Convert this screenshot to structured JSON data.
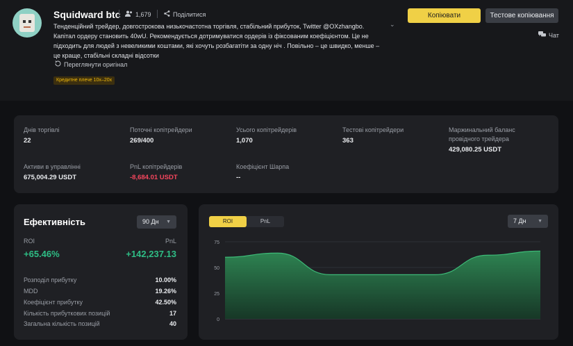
{
  "profile": {
    "name": "Squidward btc",
    "followers": "1,679",
    "share_label": "Поділитися",
    "description": "Тенденційний трейдер, довгострокова низькочастотна торгівля, стабільний прибуток, Twitter @OXzhangbo. Капітал ордеру становить 40wU. Рекомендується дотримуватися ордерів із фіксованим коефіцієнтом. Це не підходить для людей з невеликими коштами, які хочуть розбагатіти за одну ніч . Повільно – це швидко, менше – це краще, стабільні складні відсотки",
    "view_original": "Переглянути оригінал",
    "leverage_tag": "Кредитне плече 10x–20x"
  },
  "actions": {
    "copy": "Копіювати",
    "test_copy": "Тестове копіювання",
    "chat": "Чат"
  },
  "stats": [
    {
      "label": "Днів торгівлі",
      "value": "22"
    },
    {
      "label": "Поточні копітрейдери",
      "value": "269/400"
    },
    {
      "label": "Усього копітрейдерів",
      "value": "1,070"
    },
    {
      "label": "Тестові копітрейдери",
      "value": "363"
    },
    {
      "label": "Маржинальний баланс провідного трейдера",
      "value": "429,080.25 USDT"
    },
    {
      "label": "Активи в управлінні",
      "value": "675,004.29 USDT"
    },
    {
      "label": "PnL копітрейдерів",
      "value": "-8,684.01 USDT"
    },
    {
      "label": "Коефіцієнт Шарпа",
      "value": "--"
    }
  ],
  "performance": {
    "title": "Ефективність",
    "period": "90 Дн",
    "roi_label": "ROI",
    "roi_value": "+65.46%",
    "pnl_label": "PnL",
    "pnl_value": "+142,237.13",
    "rows": [
      {
        "label": "Розподіл прибутку",
        "value": "10.00%"
      },
      {
        "label": "MDD",
        "value": "19.26%"
      },
      {
        "label": "Коефіцієнт прибутку",
        "value": "42.50%"
      },
      {
        "label": "Кількість прибуткових позицій",
        "value": "17"
      },
      {
        "label": "Загальна кількість позицій",
        "value": "40"
      }
    ]
  },
  "chart_panel": {
    "tabs": [
      "ROI",
      "PnL"
    ],
    "active_tab": "ROI",
    "period": "7 Дн"
  },
  "colors": {
    "accent": "#f0d046",
    "positive": "#2ebd85",
    "negative": "#f6465d"
  },
  "chart_data": {
    "type": "area",
    "title": "",
    "xlabel": "",
    "ylabel": "",
    "x": [
      0,
      1,
      2,
      3,
      4,
      5,
      6
    ],
    "values": [
      60,
      64,
      43,
      43,
      43,
      62,
      66
    ],
    "ylim": [
      0,
      75
    ],
    "yticks": [
      0,
      25,
      50,
      75
    ],
    "grid": true
  }
}
